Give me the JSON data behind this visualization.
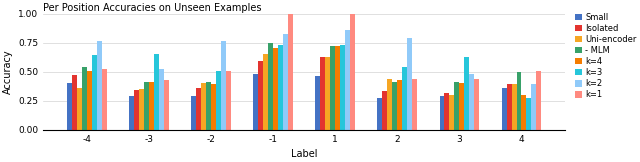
{
  "title": "Per Position Accuracies on Unseen Examples",
  "xlabel": "Label",
  "ylabel": "Accuracy",
  "categories": [
    -4,
    -3,
    -2,
    -1,
    1,
    2,
    3,
    4
  ],
  "series": {
    "Small": [
      0.4,
      0.29,
      0.29,
      0.48,
      0.46,
      0.27,
      0.29,
      0.36
    ],
    "Isolated": [
      0.47,
      0.34,
      0.36,
      0.59,
      0.63,
      0.33,
      0.32,
      0.39
    ],
    "Uni-encoder": [
      0.36,
      0.35,
      0.4,
      0.65,
      0.63,
      0.44,
      0.3,
      0.39
    ],
    "- MLM": [
      0.54,
      0.41,
      0.41,
      0.75,
      0.72,
      0.41,
      0.41,
      0.5
    ],
    "k=4": [
      0.51,
      0.41,
      0.39,
      0.7,
      0.72,
      0.43,
      0.4,
      0.3
    ],
    "k=3": [
      0.64,
      0.65,
      0.51,
      0.73,
      0.73,
      0.54,
      0.63,
      0.27
    ],
    "k=2": [
      0.76,
      0.52,
      0.76,
      0.82,
      0.86,
      0.79,
      0.48,
      0.39
    ],
    "k=1": [
      0.52,
      0.43,
      0.51,
      1.0,
      1.0,
      0.44,
      0.44,
      0.51
    ]
  },
  "colors": {
    "Small": "#4472C4",
    "Isolated": "#E3342F",
    "Uni-encoder": "#F6A623",
    "- MLM": "#38A169",
    "k=4": "#F57C00",
    "k=3": "#26C6DA",
    "k=2": "#90CAF9",
    "k=1": "#FF8A80"
  },
  "ylim": [
    0.0,
    1.0
  ],
  "yticks": [
    0.0,
    0.25,
    0.5,
    0.75,
    1.0
  ],
  "figsize": [
    6.4,
    1.62
  ],
  "dpi": 100
}
